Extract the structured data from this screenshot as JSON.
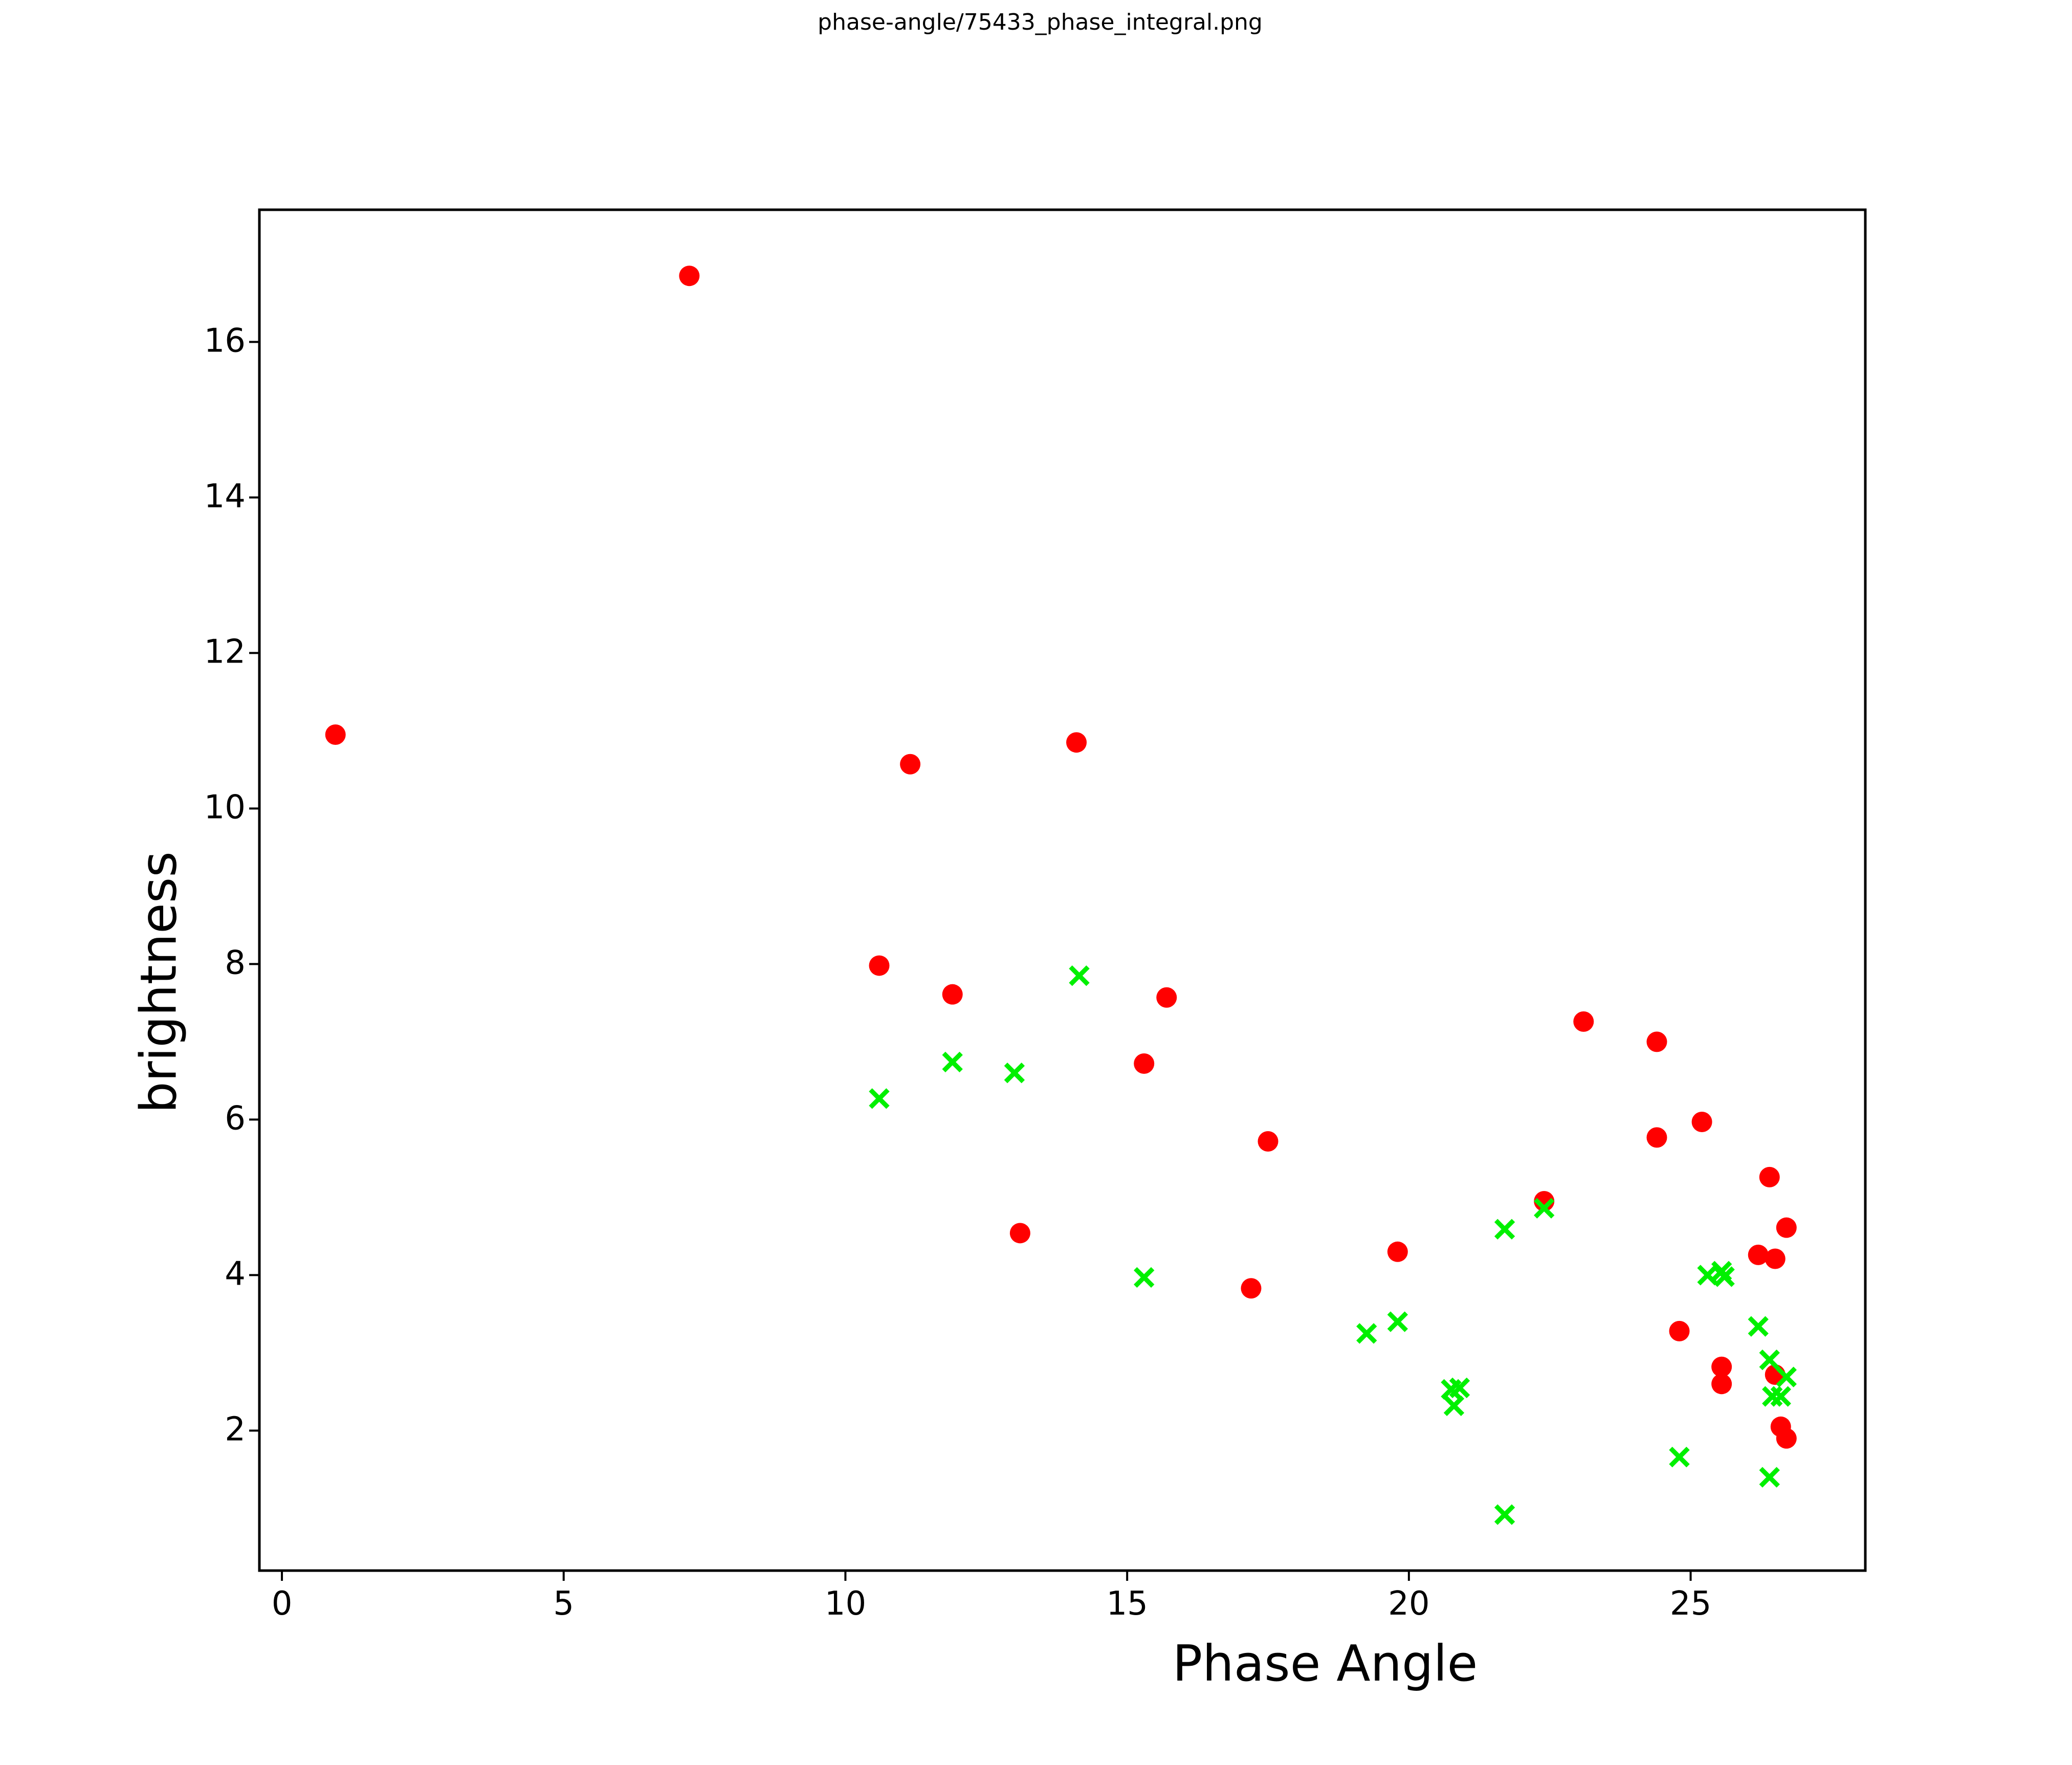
{
  "figure": {
    "background": "#ffffff",
    "spine_color": "#000000"
  },
  "chart_data": {
    "type": "scatter",
    "title": "phase-angle/75433_phase_integral.png",
    "xlabel": "Phase Angle",
    "ylabel": "brightness",
    "xlim": [
      -0.4,
      28.1
    ],
    "ylim": [
      0.2,
      17.7
    ],
    "x_ticks": [
      0,
      5,
      10,
      15,
      20,
      25
    ],
    "y_ticks": [
      2,
      4,
      6,
      8,
      10,
      12,
      14,
      16
    ],
    "grid": false,
    "legend": "none",
    "series": [
      {
        "name": "red-circles",
        "marker": "circle",
        "color": "#ff0000",
        "marker_diameter_px": 40,
        "points": [
          [
            0.95,
            10.95
          ],
          [
            7.23,
            16.85
          ],
          [
            10.6,
            7.98
          ],
          [
            11.15,
            10.57
          ],
          [
            11.9,
            7.61
          ],
          [
            13.1,
            4.54
          ],
          [
            14.1,
            10.85
          ],
          [
            15.3,
            6.72
          ],
          [
            15.7,
            7.57
          ],
          [
            17.2,
            3.83
          ],
          [
            17.5,
            5.72
          ],
          [
            19.8,
            4.3
          ],
          [
            22.4,
            4.95
          ],
          [
            23.1,
            7.26
          ],
          [
            24.4,
            7.0
          ],
          [
            24.4,
            5.77
          ],
          [
            24.8,
            3.28
          ],
          [
            25.2,
            5.97
          ],
          [
            25.55,
            2.82
          ],
          [
            25.55,
            2.6
          ],
          [
            26.2,
            4.26
          ],
          [
            26.4,
            5.26
          ],
          [
            26.5,
            4.21
          ],
          [
            26.5,
            2.72
          ],
          [
            26.6,
            2.05
          ],
          [
            26.7,
            4.61
          ],
          [
            26.7,
            1.9
          ]
        ]
      },
      {
        "name": "green-crosses",
        "marker": "x",
        "color": "#00f000",
        "marker_diameter_px": 34,
        "points": [
          [
            10.6,
            6.27
          ],
          [
            11.9,
            6.74
          ],
          [
            13.0,
            6.6
          ],
          [
            14.15,
            7.85
          ],
          [
            15.3,
            3.97
          ],
          [
            19.25,
            3.25
          ],
          [
            19.8,
            3.4
          ],
          [
            20.75,
            2.53
          ],
          [
            20.9,
            2.55
          ],
          [
            20.8,
            2.32
          ],
          [
            21.7,
            4.59
          ],
          [
            21.7,
            0.92
          ],
          [
            22.4,
            4.86
          ],
          [
            24.8,
            1.66
          ],
          [
            25.3,
            4.0
          ],
          [
            25.55,
            4.05
          ],
          [
            25.6,
            3.98
          ],
          [
            26.2,
            3.34
          ],
          [
            26.4,
            2.91
          ],
          [
            26.45,
            2.44
          ],
          [
            26.6,
            2.44
          ],
          [
            26.7,
            2.69
          ],
          [
            26.4,
            1.4
          ]
        ]
      }
    ]
  }
}
